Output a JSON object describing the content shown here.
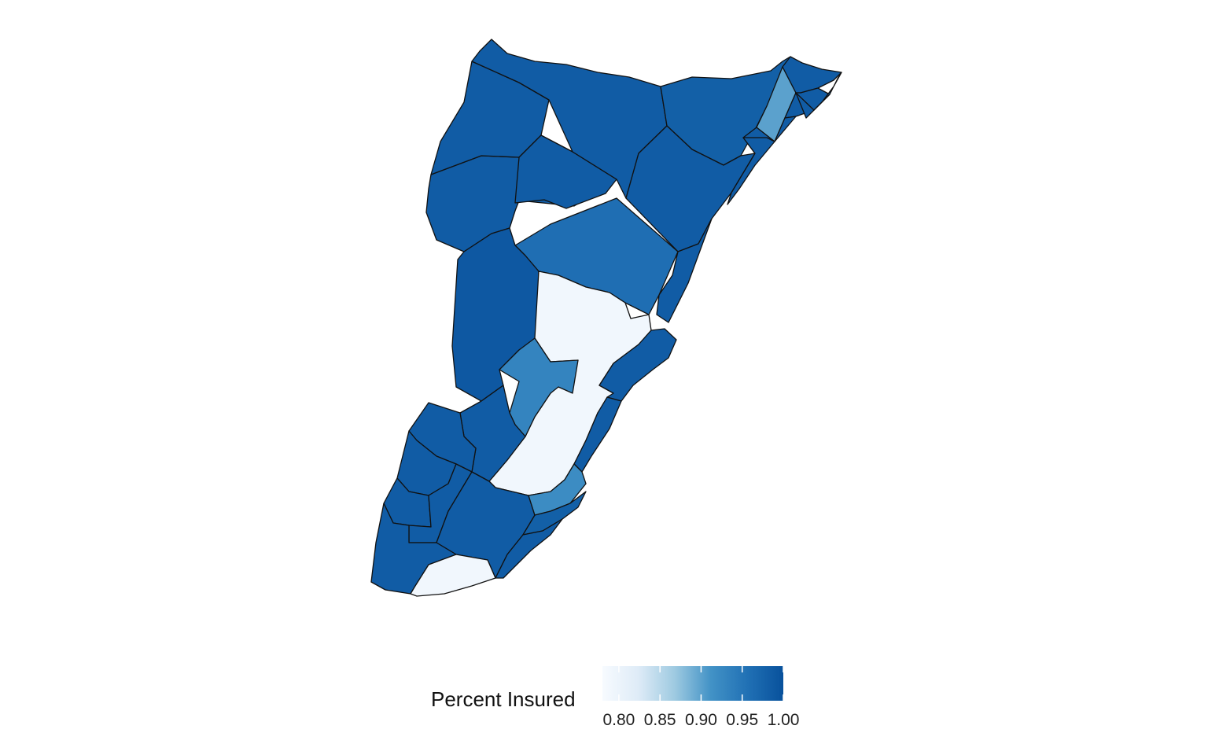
{
  "map": {
    "region_count": 30,
    "scale": {
      "min": 0.78,
      "max": 1.0,
      "low_color": "#f3f7fd",
      "high_color": "#08519c"
    },
    "tracts": [
      {
        "id": "t01",
        "value": 0.985
      },
      {
        "id": "t02",
        "value": 0.985
      },
      {
        "id": "t03",
        "value": 0.985
      },
      {
        "id": "t04",
        "value": 0.985
      },
      {
        "id": "t05",
        "value": 0.98
      },
      {
        "id": "t06",
        "value": 0.9
      },
      {
        "id": "t07",
        "value": 0.985
      },
      {
        "id": "t08",
        "value": 0.985
      },
      {
        "id": "t09",
        "value": 0.985
      },
      {
        "id": "t10",
        "value": 0.985
      },
      {
        "id": "t11",
        "value": 0.985
      },
      {
        "id": "t12",
        "value": 0.96
      },
      {
        "id": "t13",
        "value": 0.99
      },
      {
        "id": "t14",
        "value": 0.79
      },
      {
        "id": "t15",
        "value": 0.93
      },
      {
        "id": "t16",
        "value": 0.985
      },
      {
        "id": "t17",
        "value": 0.985
      },
      {
        "id": "t18",
        "value": 0.985
      },
      {
        "id": "t19",
        "value": 0.985
      },
      {
        "id": "t20",
        "value": 0.985
      },
      {
        "id": "t21",
        "value": 0.985
      },
      {
        "id": "t22",
        "value": 0.985
      },
      {
        "id": "t23",
        "value": 0.985
      },
      {
        "id": "t24",
        "value": 0.985
      },
      {
        "id": "t25",
        "value": 0.92
      },
      {
        "id": "t26",
        "value": 0.98
      },
      {
        "id": "t27",
        "value": 0.985
      },
      {
        "id": "t28",
        "value": 0.985
      },
      {
        "id": "t29",
        "value": 0.985
      },
      {
        "id": "t30",
        "value": 0.79
      }
    ]
  },
  "legend": {
    "title": "Percent Insured",
    "ticks": [
      "0.80",
      "0.85",
      "0.90",
      "0.95",
      "1.00"
    ],
    "tick_values": [
      0.8,
      0.85,
      0.9,
      0.95,
      1.0
    ],
    "colors": [
      "#f7fbff",
      "#deebf7",
      "#9ecae1",
      "#4292c6",
      "#2171b5",
      "#08519c"
    ]
  }
}
